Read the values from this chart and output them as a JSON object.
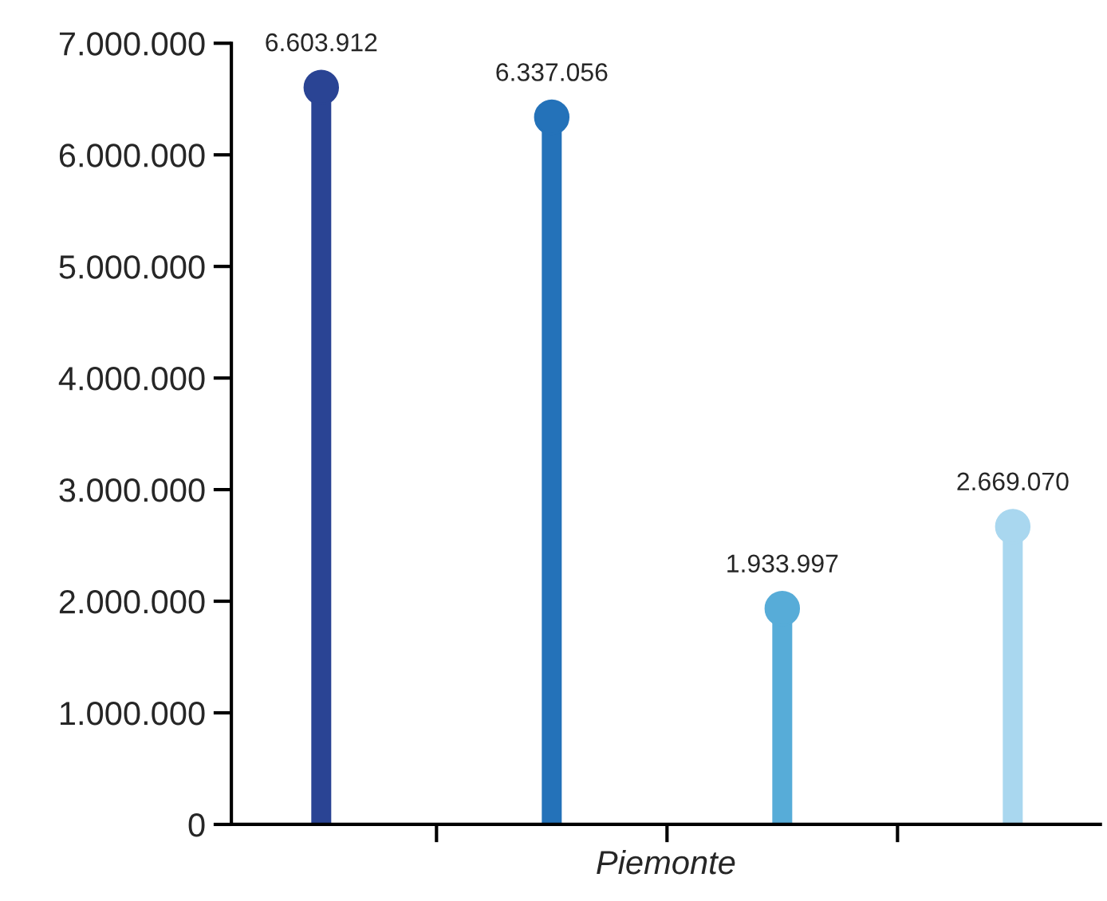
{
  "chart_data": {
    "type": "lollipop",
    "xlabel": "Piemonte",
    "categories": [
      null,
      null,
      null,
      null
    ],
    "values": [
      6603912,
      6337056,
      1933997,
      2669070
    ],
    "colors": [
      "#2a4494",
      "#2472b9",
      "#57acd8",
      "#a9d7ef"
    ],
    "value_labels": [
      "6.603.912",
      "6.337.056",
      "1.933.997",
      "2.669.070"
    ],
    "ylim": [
      0,
      7000000
    ],
    "yticks": [
      {
        "value": 0,
        "label": "0"
      },
      {
        "value": 1000000,
        "label": "1.000.000"
      },
      {
        "value": 2000000,
        "label": "2.000.000"
      },
      {
        "value": 3000000,
        "label": "3.000.000"
      },
      {
        "value": 4000000,
        "label": "4.000.000"
      },
      {
        "value": 5000000,
        "label": "5.000.000"
      },
      {
        "value": 6000000,
        "label": "6.000.000"
      },
      {
        "value": 7000000,
        "label": "7.000.000"
      }
    ],
    "grid": false,
    "legend": false
  }
}
